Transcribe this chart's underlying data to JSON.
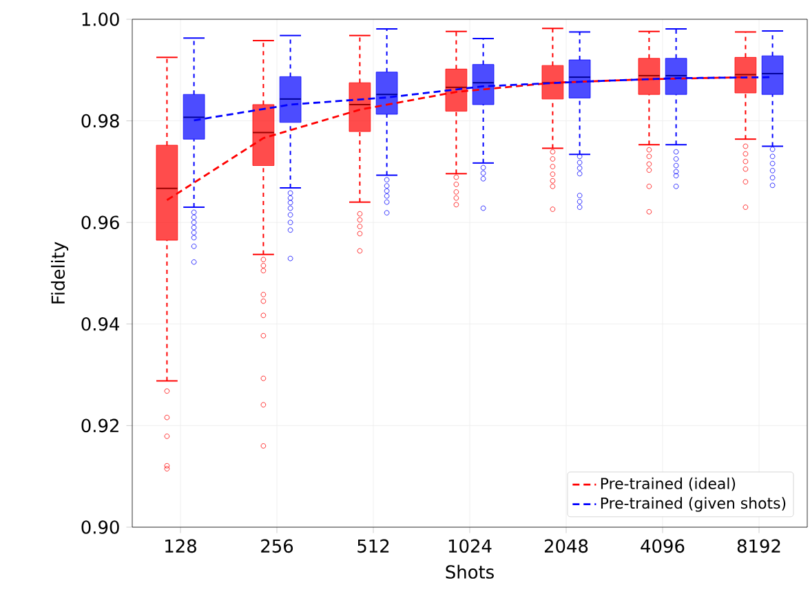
{
  "chart_data": {
    "type": "box",
    "xlabel": "Shots",
    "ylabel": "Fidelity",
    "categories": [
      "128",
      "256",
      "512",
      "1024",
      "2048",
      "4096",
      "8192"
    ],
    "ylim": [
      0.9,
      1.0
    ],
    "yticks": [
      {
        "value": 0.9,
        "label": "0.90"
      },
      0.92,
      0.94,
      0.96,
      0.98,
      {
        "value": 1.0,
        "label": "1.00"
      }
    ],
    "grid": true,
    "legend": "bottom right",
    "series": [
      {
        "color": "#ff0000",
        "boxes": [
          {
            "low": 0.9288,
            "q1": 0.9565,
            "median": 0.9667,
            "q3": 0.9752,
            "high": 0.9925,
            "outliers": [
              0.9268,
              0.9216,
              0.9179,
              0.9121,
              0.9115
            ]
          },
          {
            "low": 0.9537,
            "q1": 0.9712,
            "median": 0.9777,
            "q3": 0.9832,
            "high": 0.9958,
            "outliers": [
              0.9527,
              0.9515,
              0.9505,
              0.9458,
              0.9445,
              0.9417,
              0.9377,
              0.9293,
              0.9241,
              0.916
            ]
          },
          {
            "low": 0.964,
            "q1": 0.9779,
            "median": 0.9832,
            "q3": 0.9875,
            "high": 0.9968,
            "outliers": [
              0.9617,
              0.9605,
              0.9592,
              0.9578,
              0.9544
            ]
          },
          {
            "low": 0.9696,
            "q1": 0.9819,
            "median": 0.9866,
            "q3": 0.9902,
            "high": 0.9976,
            "outliers": [
              0.9689,
              0.9675,
              0.966,
              0.9648,
              0.9635
            ]
          },
          {
            "low": 0.9746,
            "q1": 0.9843,
            "median": 0.9875,
            "q3": 0.9909,
            "high": 0.9982,
            "outliers": [
              0.9739,
              0.9725,
              0.971,
              0.9695,
              0.9682,
              0.9671,
              0.9626
            ]
          },
          {
            "low": 0.9753,
            "q1": 0.9852,
            "median": 0.9889,
            "q3": 0.9923,
            "high": 0.9976,
            "outliers": [
              0.9743,
              0.973,
              0.9715,
              0.9703,
              0.9671,
              0.9621
            ]
          },
          {
            "low": 0.9764,
            "q1": 0.9855,
            "median": 0.9891,
            "q3": 0.9925,
            "high": 0.9975,
            "outliers": [
              0.975,
              0.9735,
              0.972,
              0.9705,
              0.968,
              0.963
            ]
          }
        ]
      },
      {
        "color": "#0000ff",
        "boxes": [
          {
            "low": 0.963,
            "q1": 0.9764,
            "median": 0.9807,
            "q3": 0.9852,
            "high": 0.9963,
            "outliers": [
              0.962,
              0.961,
              0.96,
              0.959,
              0.958,
              0.957,
              0.9553,
              0.9522
            ]
          },
          {
            "low": 0.9668,
            "q1": 0.9797,
            "median": 0.9843,
            "q3": 0.9887,
            "high": 0.9968,
            "outliers": [
              0.9658,
              0.9648,
              0.9639,
              0.9628,
              0.9615,
              0.96,
              0.9585,
              0.9529
            ]
          },
          {
            "low": 0.9693,
            "q1": 0.9813,
            "median": 0.9852,
            "q3": 0.9896,
            "high": 0.9981,
            "outliers": [
              0.9684,
              0.9672,
              0.9662,
              0.9652,
              0.964,
              0.9619
            ]
          },
          {
            "low": 0.9717,
            "q1": 0.9832,
            "median": 0.9875,
            "q3": 0.9911,
            "high": 0.9962,
            "outliers": [
              0.9708,
              0.9697,
              0.9686,
              0.9628
            ]
          },
          {
            "low": 0.9734,
            "q1": 0.9845,
            "median": 0.9886,
            "q3": 0.992,
            "high": 0.9975,
            "outliers": [
              0.973,
              0.9718,
              0.9707,
              0.9696,
              0.9653,
              0.9641,
              0.963
            ]
          },
          {
            "low": 0.9753,
            "q1": 0.9852,
            "median": 0.9889,
            "q3": 0.9923,
            "high": 0.9981,
            "outliers": [
              0.9739,
              0.9725,
              0.9712,
              0.97,
              0.9692,
              0.9671
            ]
          },
          {
            "low": 0.975,
            "q1": 0.9852,
            "median": 0.9893,
            "q3": 0.9928,
            "high": 0.9977,
            "outliers": [
              0.9744,
              0.973,
              0.9716,
              0.9702,
              0.9688,
              0.9673
            ]
          }
        ]
      },
      {
        "name": "Pre-trained (ideal)",
        "type": "line",
        "color": "#ff0000",
        "line_style": "dashed",
        "marker": "none",
        "values": [
          0.9644,
          0.9766,
          0.9822,
          0.9857,
          0.9875,
          0.9882,
          0.9886
        ]
      },
      {
        "name": "Pre-trained (given shots)",
        "type": "line",
        "color": "#0000ff",
        "line_style": "dashed",
        "marker": "none",
        "values": [
          0.9801,
          0.9832,
          0.9846,
          0.9868,
          0.9877,
          0.9884,
          0.9886
        ]
      }
    ]
  }
}
